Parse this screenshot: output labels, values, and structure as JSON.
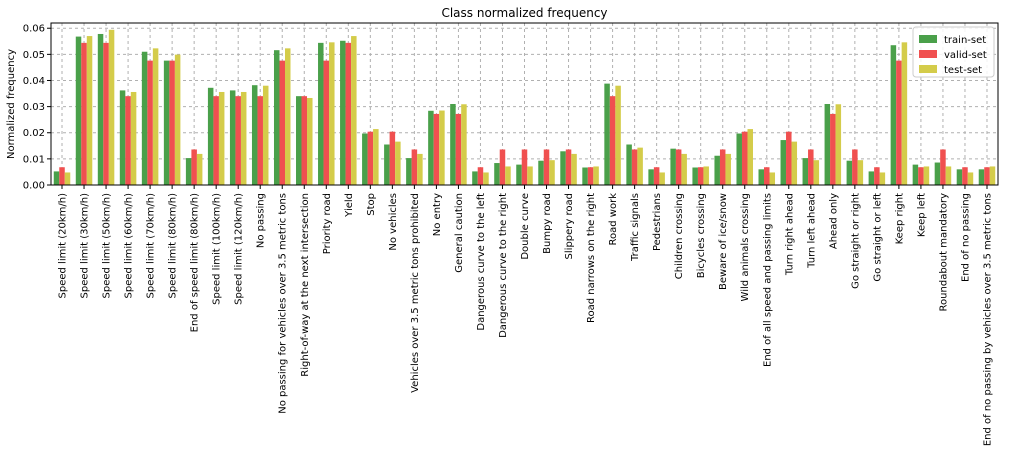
{
  "chart_data": {
    "type": "bar",
    "title": "Class normalized frequency",
    "xlabel": "",
    "ylabel": "Normalized frequency",
    "ylim": [
      0,
      0.062
    ],
    "yticks": [
      "0.00",
      "0.01",
      "0.02",
      "0.03",
      "0.04",
      "0.05",
      "0.06"
    ],
    "grid": true,
    "legend_position": "top-right",
    "categories": [
      "Speed limit (20km/h)",
      "Speed limit (30km/h)",
      "Speed limit (50km/h)",
      "Speed limit (60km/h)",
      "Speed limit (70km/h)",
      "Speed limit (80km/h)",
      "End of speed limit (80km/h)",
      "Speed limit (100km/h)",
      "Speed limit (120km/h)",
      "No passing",
      "No passing for vehicles over 3.5 metric tons",
      "Right-of-way at the next intersection",
      "Priority road",
      "Yield",
      "Stop",
      "No vehicles",
      "Vehicles over 3.5 metric tons prohibited",
      "No entry",
      "General caution",
      "Dangerous curve to the left",
      "Dangerous curve to the right",
      "Double curve",
      "Bumpy road",
      "Slippery road",
      "Road narrows on the right",
      "Road work",
      "Traffic signals",
      "Pedestrians",
      "Children crossing",
      "Bicycles crossing",
      "Beware of ice/snow",
      "Wild animals crossing",
      "End of all speed and passing limits",
      "Turn right ahead",
      "Turn left ahead",
      "Ahead only",
      "Go straight or right",
      "Go straight or left",
      "Keep right",
      "Keep left",
      "Roundabout mandatory",
      "End of no passing",
      "End of no passing by vehicles over 3.5 metric tons"
    ],
    "series": [
      {
        "name": "train-set",
        "color": "#4aa04a",
        "values": [
          0.0052,
          0.0568,
          0.0578,
          0.0362,
          0.051,
          0.0476,
          0.0103,
          0.0372,
          0.0362,
          0.0382,
          0.0516,
          0.034,
          0.0544,
          0.0552,
          0.0197,
          0.0155,
          0.0103,
          0.0284,
          0.031,
          0.0052,
          0.0084,
          0.0078,
          0.0093,
          0.0129,
          0.0067,
          0.0388,
          0.0155,
          0.006,
          0.0139,
          0.0067,
          0.0112,
          0.0197,
          0.006,
          0.0172,
          0.0103,
          0.031,
          0.0093,
          0.0052,
          0.0535,
          0.0078,
          0.0086,
          0.006,
          0.006
        ]
      },
      {
        "name": "valid-set",
        "color": "#f05050",
        "values": [
          0.0068,
          0.0544,
          0.0544,
          0.034,
          0.0476,
          0.0476,
          0.0136,
          0.034,
          0.034,
          0.034,
          0.0476,
          0.034,
          0.0476,
          0.0544,
          0.0204,
          0.0204,
          0.0136,
          0.0272,
          0.0272,
          0.0068,
          0.0136,
          0.0136,
          0.0136,
          0.0136,
          0.0068,
          0.034,
          0.0136,
          0.0068,
          0.0136,
          0.0068,
          0.0136,
          0.0204,
          0.0068,
          0.0204,
          0.0136,
          0.0272,
          0.0136,
          0.0068,
          0.0476,
          0.0068,
          0.0136,
          0.0068,
          0.0068
        ]
      },
      {
        "name": "test-set",
        "color": "#d4cc4a",
        "values": [
          0.0048,
          0.057,
          0.0594,
          0.0356,
          0.0523,
          0.0499,
          0.0119,
          0.0356,
          0.0356,
          0.038,
          0.0523,
          0.0333,
          0.0546,
          0.057,
          0.0214,
          0.0166,
          0.0119,
          0.0285,
          0.0309,
          0.0048,
          0.0071,
          0.0071,
          0.0095,
          0.0119,
          0.0071,
          0.038,
          0.0143,
          0.0048,
          0.0119,
          0.0071,
          0.0119,
          0.0214,
          0.0048,
          0.0166,
          0.0095,
          0.0309,
          0.0095,
          0.0048,
          0.0546,
          0.0071,
          0.0071,
          0.0048,
          0.0071
        ]
      }
    ]
  }
}
